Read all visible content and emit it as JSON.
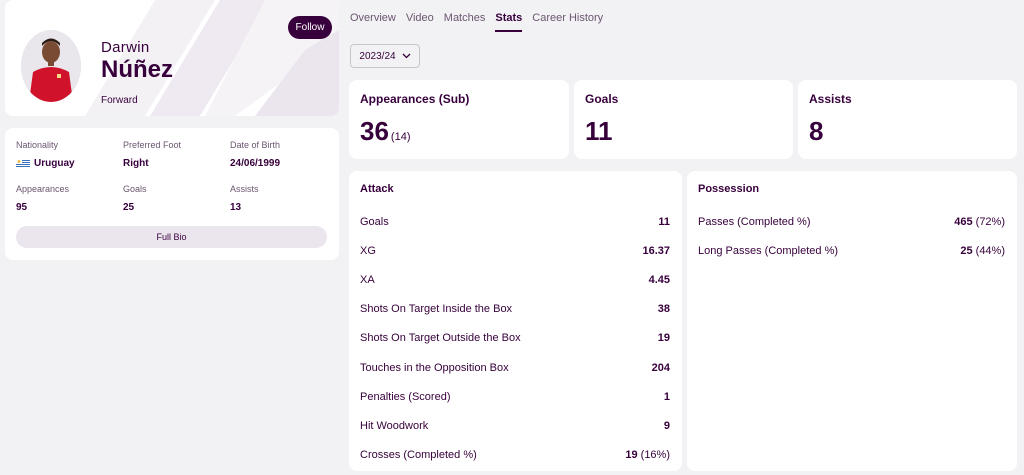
{
  "player": {
    "first_name": "Darwin",
    "last_name": "Núñez",
    "position": "Forward",
    "follow_label": "Follow"
  },
  "bio": {
    "nationality_label": "Nationality",
    "nationality_value": "Uruguay",
    "foot_label": "Preferred Foot",
    "foot_value": "Right",
    "dob_label": "Date of Birth",
    "dob_value": "24/06/1999",
    "apps_label": "Appearances",
    "apps_value": "95",
    "goals_label": "Goals",
    "goals_value": "25",
    "assists_label": "Assists",
    "assists_value": "13",
    "full_bio_label": "Full Bio"
  },
  "tabs": [
    "Overview",
    "Video",
    "Matches",
    "Stats",
    "Career History"
  ],
  "active_tab": "Stats",
  "season": "2023/24",
  "summary": {
    "apps_title": "Appearances (Sub)",
    "apps_value": "36",
    "apps_sub": "(14)",
    "goals_title": "Goals",
    "goals_value": "11",
    "assists_title": "Assists",
    "assists_value": "8"
  },
  "attack": {
    "title": "Attack",
    "rows": [
      {
        "label": "Goals",
        "value": "11",
        "pct": ""
      },
      {
        "label": "XG",
        "value": "16.37",
        "pct": ""
      },
      {
        "label": "XA",
        "value": "4.45",
        "pct": ""
      },
      {
        "label": "Shots On Target Inside the Box",
        "value": "38",
        "pct": ""
      },
      {
        "label": "Shots On Target Outside the Box",
        "value": "19",
        "pct": ""
      },
      {
        "label": "Touches in the Opposition Box",
        "value": "204",
        "pct": ""
      },
      {
        "label": "Penalties (Scored)",
        "value": "1",
        "pct": ""
      },
      {
        "label": "Hit Woodwork",
        "value": "9",
        "pct": ""
      },
      {
        "label": "Crosses (Completed %)",
        "value": "19",
        "pct": "(16%)"
      }
    ]
  },
  "possession": {
    "title": "Possession",
    "rows": [
      {
        "label": "Passes (Completed %)",
        "value": "465",
        "pct": "(72%)"
      },
      {
        "label": "Long Passes (Completed %)",
        "value": "25",
        "pct": "(44%)"
      }
    ]
  },
  "colors": {
    "brand": "#37003c",
    "background": "#f2f2f4",
    "card": "#ffffff"
  }
}
